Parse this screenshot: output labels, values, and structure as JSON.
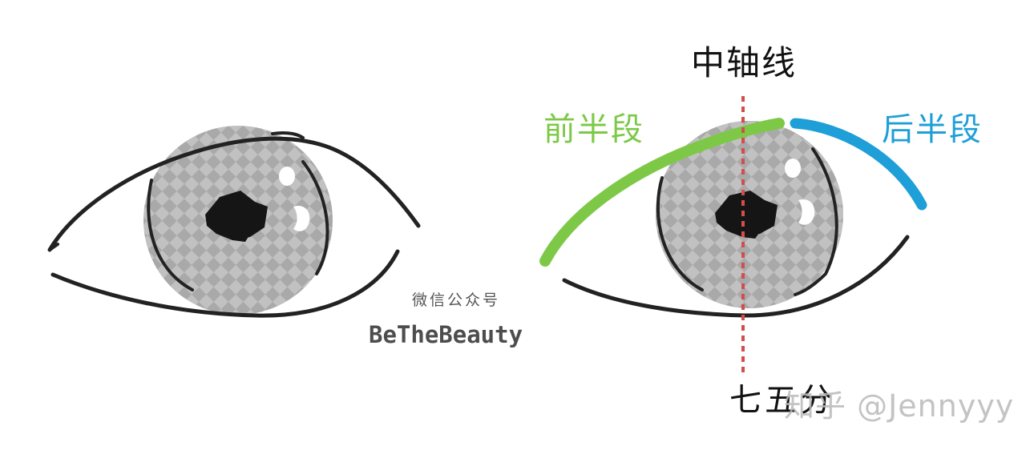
{
  "labels": {
    "axis": "中轴线",
    "front": "前半段",
    "back": "后半段",
    "bottom": "七五分"
  },
  "watermark": {
    "wechat": "微信公众号",
    "brand": "BeTheBeauty",
    "zhihu": "知乎 @Jennyyy"
  },
  "colors": {
    "outline": "#222222",
    "iris": "#a9a9a9",
    "pupil": "#151515",
    "front_segment": "#7dc947",
    "back_segment": "#1e9fd8",
    "axis_line": "#d24e4e"
  }
}
